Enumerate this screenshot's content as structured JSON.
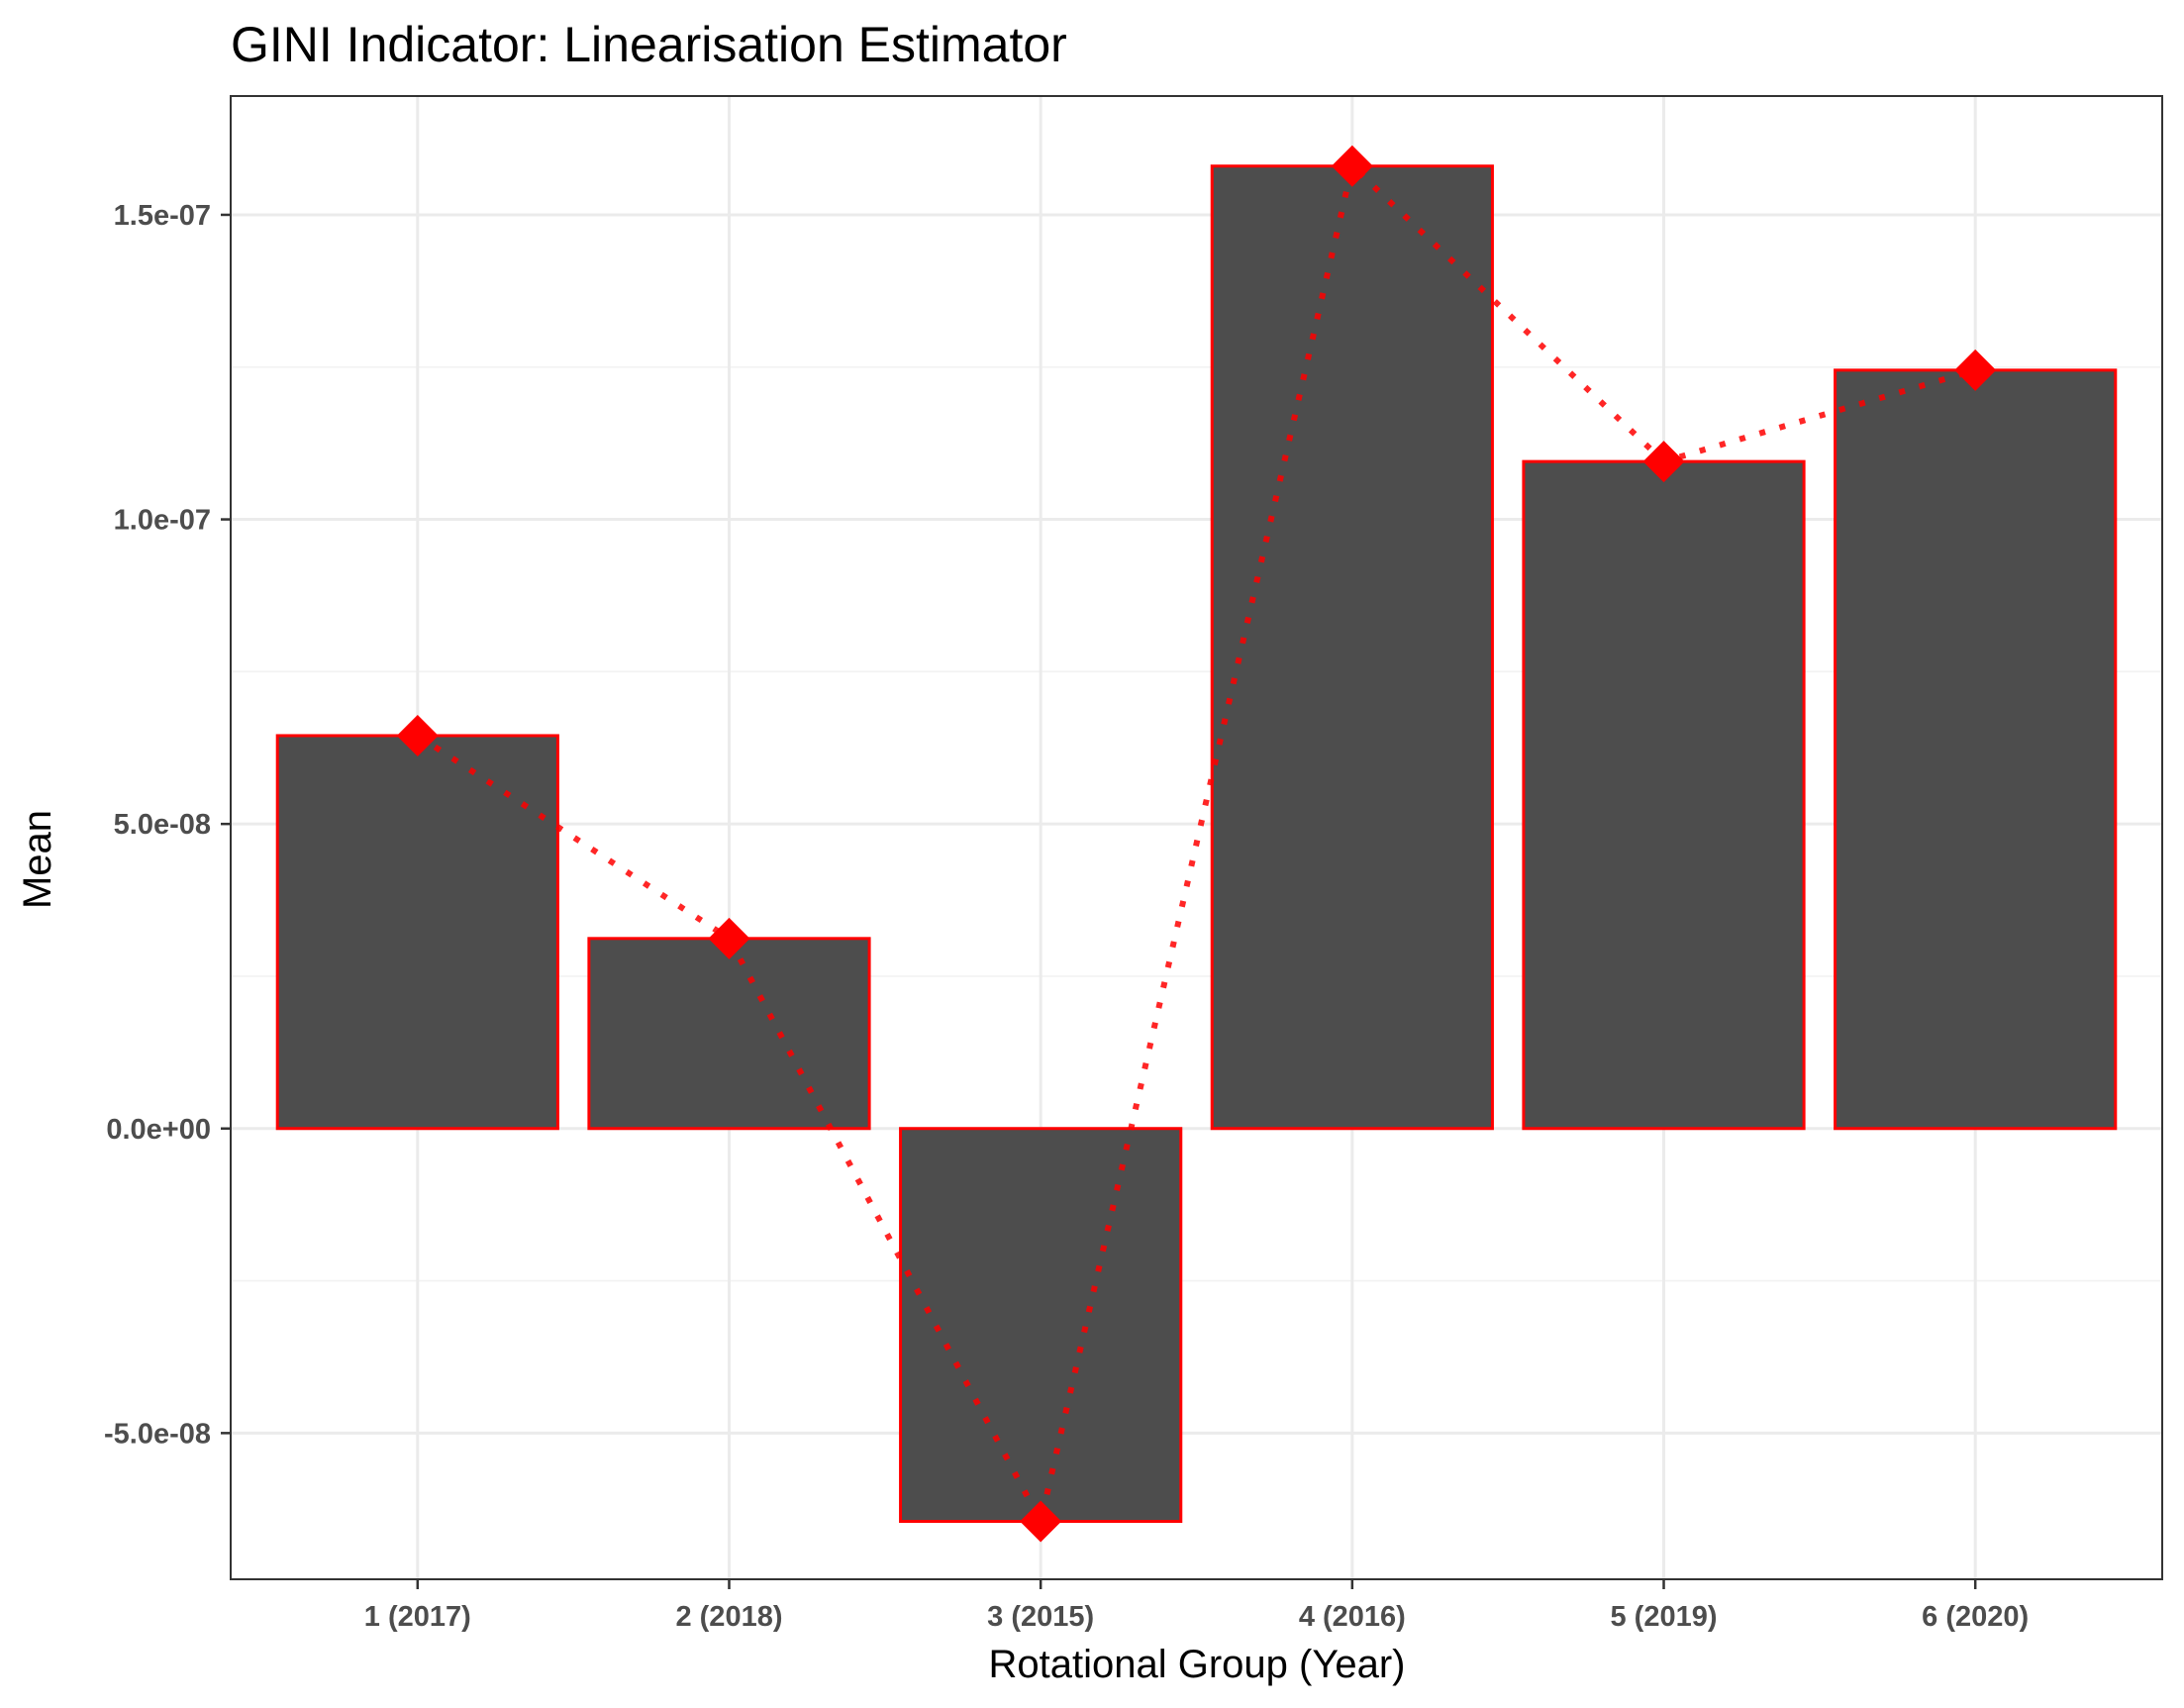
{
  "chart_data": {
    "type": "bar",
    "title": "GINI Indicator: Linearisation Estimator",
    "xlabel": "Rotational Group (Year)",
    "ylabel": "Mean",
    "categories": [
      "1 (2017)",
      "2 (2018)",
      "3 (2015)",
      "4 (2016)",
      "5 (2019)",
      "6 (2020)"
    ],
    "values": [
      6.45e-08,
      3.12e-08,
      -6.45e-08,
      1.58e-07,
      1.095e-07,
      1.245e-07
    ],
    "ylim": [
      -7.4e-08,
      1.695e-07
    ],
    "yticks": [
      -5e-08,
      0,
      5e-08,
      1e-07,
      1.5e-07
    ],
    "ytick_labels": [
      "-5.0e-08",
      "0.0e+00",
      "5.0e-08",
      "1.0e-07",
      "1.5e-07"
    ],
    "overlay": {
      "type": "line",
      "style": "dotted",
      "marker": "diamond"
    },
    "grid": true,
    "colors": {
      "bar_fill": "#4d4d4d",
      "bar_outline": "#ff0000",
      "line": "#ff0000",
      "marker": "#ff0000"
    }
  }
}
